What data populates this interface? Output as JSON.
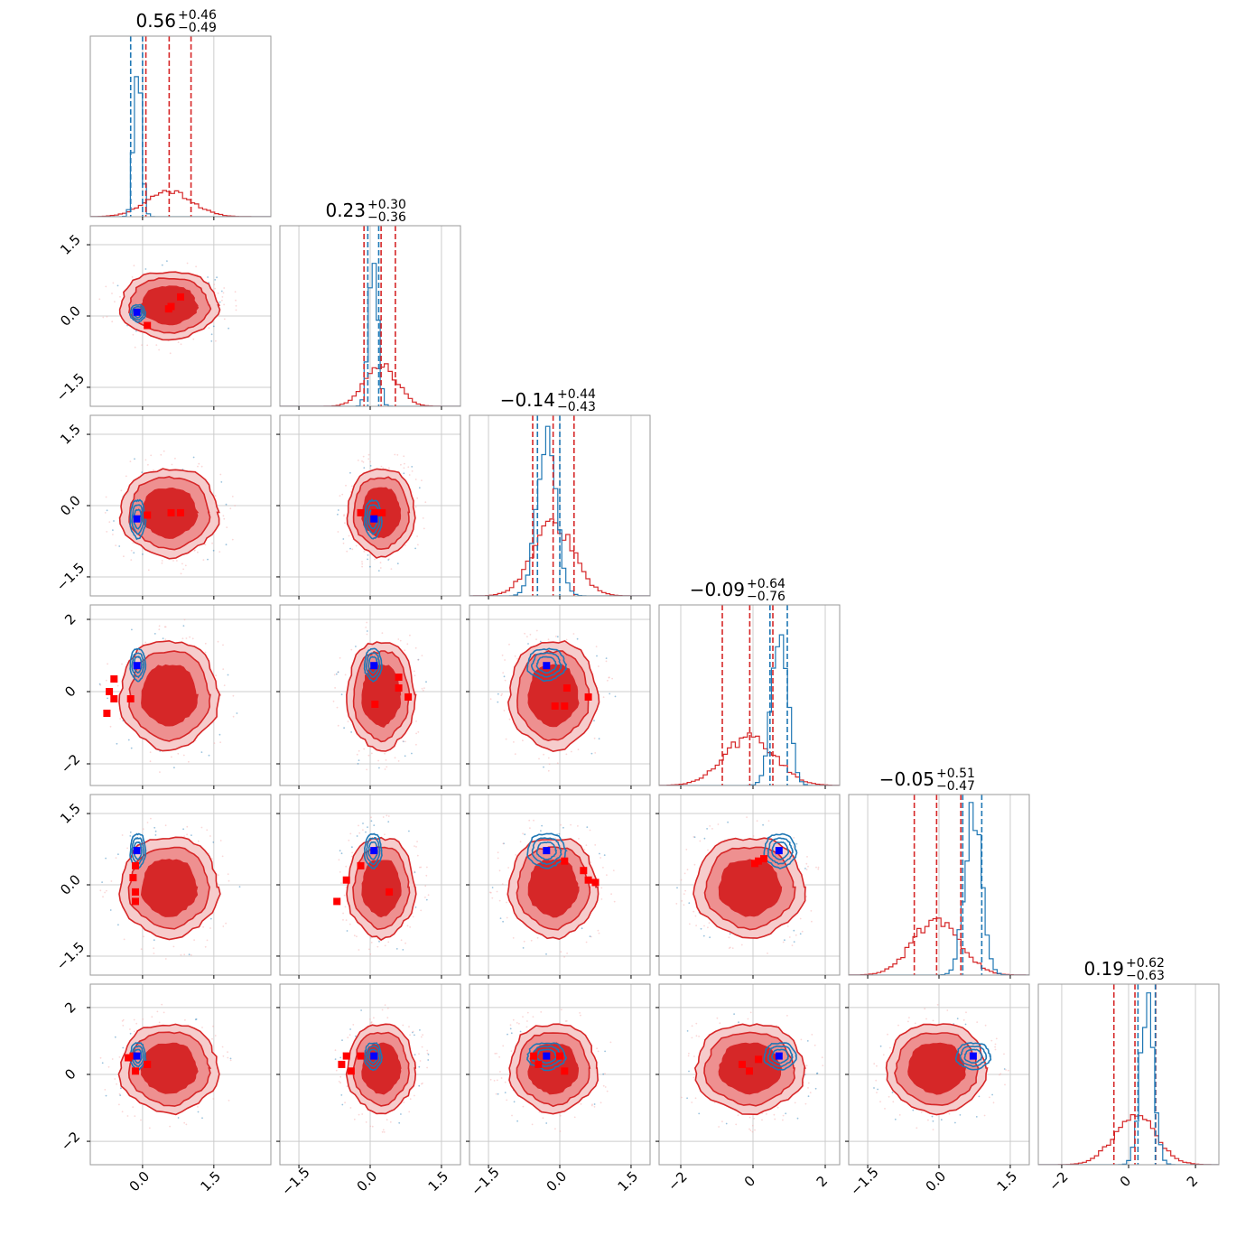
{
  "chart_data": {
    "type": "corner",
    "n_params": 6,
    "colors": {
      "posterior_a": "#d62728",
      "posterior_b": "#1f77b4",
      "marker_a": "#ff0000",
      "marker_b": "#0000ff",
      "grid": "#cccccc"
    },
    "titles": [
      {
        "value": "0.56",
        "plus": "+0.46",
        "minus": "−0.49"
      },
      {
        "value": "0.23",
        "plus": "+0.30",
        "minus": "−0.36"
      },
      {
        "value": "−0.14",
        "plus": "+0.44",
        "minus": "−0.43"
      },
      {
        "value": "−0.09",
        "plus": "+0.64",
        "minus": "−0.76"
      },
      {
        "value": "−0.05",
        "plus": "+0.51",
        "minus": "−0.47"
      },
      {
        "value": "0.19",
        "plus": "+0.62",
        "minus": "−0.63"
      }
    ],
    "ranges": [
      [
        -1.1,
        2.7
      ],
      [
        -1.9,
        1.9
      ],
      [
        -1.9,
        1.9
      ],
      [
        -2.6,
        2.4
      ],
      [
        -1.9,
        1.9
      ],
      [
        -2.7,
        2.7
      ]
    ],
    "x_ticks": [
      {
        "values": [
          0.0,
          1.5
        ],
        "labels": [
          "0.0",
          "1.5"
        ]
      },
      {
        "values": [
          -1.5,
          0.0,
          1.5
        ],
        "labels": [
          "−1.5",
          "0.0",
          "1.5"
        ]
      },
      {
        "values": [
          -1.5,
          0.0,
          1.5
        ],
        "labels": [
          "−1.5",
          "0.0",
          "1.5"
        ]
      },
      {
        "values": [
          -2,
          0,
          2
        ],
        "labels": [
          "−2",
          "0",
          "2"
        ]
      },
      {
        "values": [
          -1.5,
          0.0,
          1.5
        ],
        "labels": [
          "−1.5",
          "0.0",
          "1.5"
        ]
      },
      {
        "values": [
          -2,
          0,
          2
        ],
        "labels": [
          "−2",
          "0",
          "2"
        ]
      }
    ],
    "y_ticks": [
      null,
      {
        "values": [
          -1.5,
          0.0,
          1.5
        ],
        "labels": [
          "−1.5",
          "0.0",
          "1.5"
        ]
      },
      {
        "values": [
          -1.5,
          0.0,
          1.5
        ],
        "labels": [
          "−1.5",
          "0.0",
          "1.5"
        ]
      },
      {
        "values": [
          -2,
          0,
          2
        ],
        "labels": [
          "−2",
          "0",
          "2"
        ]
      },
      {
        "values": [
          -1.5,
          0.0,
          1.5
        ],
        "labels": [
          "−1.5",
          "0.0",
          "1.5"
        ]
      },
      {
        "values": [
          -2,
          0,
          2
        ],
        "labels": [
          "−2",
          "0",
          "2"
        ]
      }
    ],
    "posterior_a": {
      "mean": [
        0.56,
        0.23,
        -0.14,
        -0.09,
        -0.05,
        0.19
      ],
      "std": [
        0.48,
        0.33,
        0.43,
        0.7,
        0.49,
        0.62
      ],
      "quantiles": [
        [
          0.07,
          1.02
        ],
        [
          -0.13,
          0.53
        ],
        [
          -0.57,
          0.3
        ],
        [
          -0.85,
          0.55
        ],
        [
          -0.52,
          0.46
        ],
        [
          -0.44,
          0.81
        ]
      ]
    },
    "posterior_b": {
      "mean": [
        -0.1,
        0.06,
        -0.28,
        0.75,
        0.72,
        0.55
      ],
      "std": [
        0.08,
        0.09,
        0.2,
        0.22,
        0.18,
        0.2
      ],
      "quantiles": [
        [
          -0.25,
          0.0
        ],
        [
          -0.05,
          0.18
        ],
        [
          -0.47,
          0.0
        ],
        [
          0.47,
          0.95
        ],
        [
          0.5,
          0.9
        ],
        [
          0.28,
          0.8
        ]
      ]
    },
    "truth_markers_b": [
      -0.12,
      0.08,
      -0.28,
      0.72,
      0.72,
      0.55
    ],
    "markers_a": [
      [
        [
          0.1,
          -0.2
        ],
        [
          0.6,
          0.2
        ],
        [
          0.8,
          0.4
        ],
        [
          0.55,
          0.15
        ]
      ],
      [
        [
          0.1,
          -0.2
        ],
        [
          0.6,
          -0.15
        ],
        [
          0.8,
          -0.15
        ]
      ],
      [
        [
          -0.2,
          -0.15
        ],
        [
          0.1,
          -0.15
        ],
        [
          0.25,
          -0.15
        ]
      ],
      [
        [
          -0.6,
          0.35
        ],
        [
          -0.6,
          -0.2
        ],
        [
          -0.25,
          -0.2
        ],
        [
          -0.75,
          -0.6
        ],
        [
          -0.7,
          0.0
        ]
      ],
      [
        [
          0.1,
          -0.35
        ],
        [
          0.6,
          0.4
        ],
        [
          0.8,
          -0.15
        ],
        [
          0.6,
          0.1
        ]
      ],
      [
        [
          -0.1,
          -0.4
        ],
        [
          0.1,
          -0.4
        ],
        [
          0.15,
          0.1
        ],
        [
          0.6,
          -0.15
        ]
      ],
      [
        [
          -0.15,
          0.4
        ],
        [
          -0.15,
          -0.15
        ],
        [
          -0.15,
          -0.35
        ],
        [
          -0.2,
          0.15
        ]
      ],
      [
        [
          -0.5,
          0.1
        ],
        [
          -0.2,
          0.4
        ],
        [
          0.4,
          -0.15
        ],
        [
          -0.7,
          -0.35
        ]
      ],
      [
        [
          0.5,
          0.3
        ],
        [
          0.6,
          0.1
        ],
        [
          0.75,
          0.05
        ],
        [
          0.1,
          0.5
        ]
      ],
      [
        [
          0.3,
          0.55
        ],
        [
          0.15,
          0.5
        ],
        [
          0.05,
          0.45
        ]
      ],
      [
        [
          -0.15,
          0.1
        ],
        [
          -0.2,
          0.55
        ],
        [
          0.1,
          0.3
        ],
        [
          -0.3,
          0.5
        ]
      ],
      [
        [
          -0.6,
          0.3
        ],
        [
          -0.5,
          0.55
        ],
        [
          -0.4,
          0.1
        ],
        [
          -0.2,
          0.55
        ]
      ],
      [
        [
          -0.55,
          0.55
        ],
        [
          -0.45,
          0.3
        ],
        [
          0.1,
          0.1
        ],
        [
          0.0,
          0.55
        ]
      ],
      [
        [
          -0.3,
          0.3
        ],
        [
          -0.1,
          0.1
        ],
        [
          0.15,
          0.45
        ]
      ]
    ]
  }
}
